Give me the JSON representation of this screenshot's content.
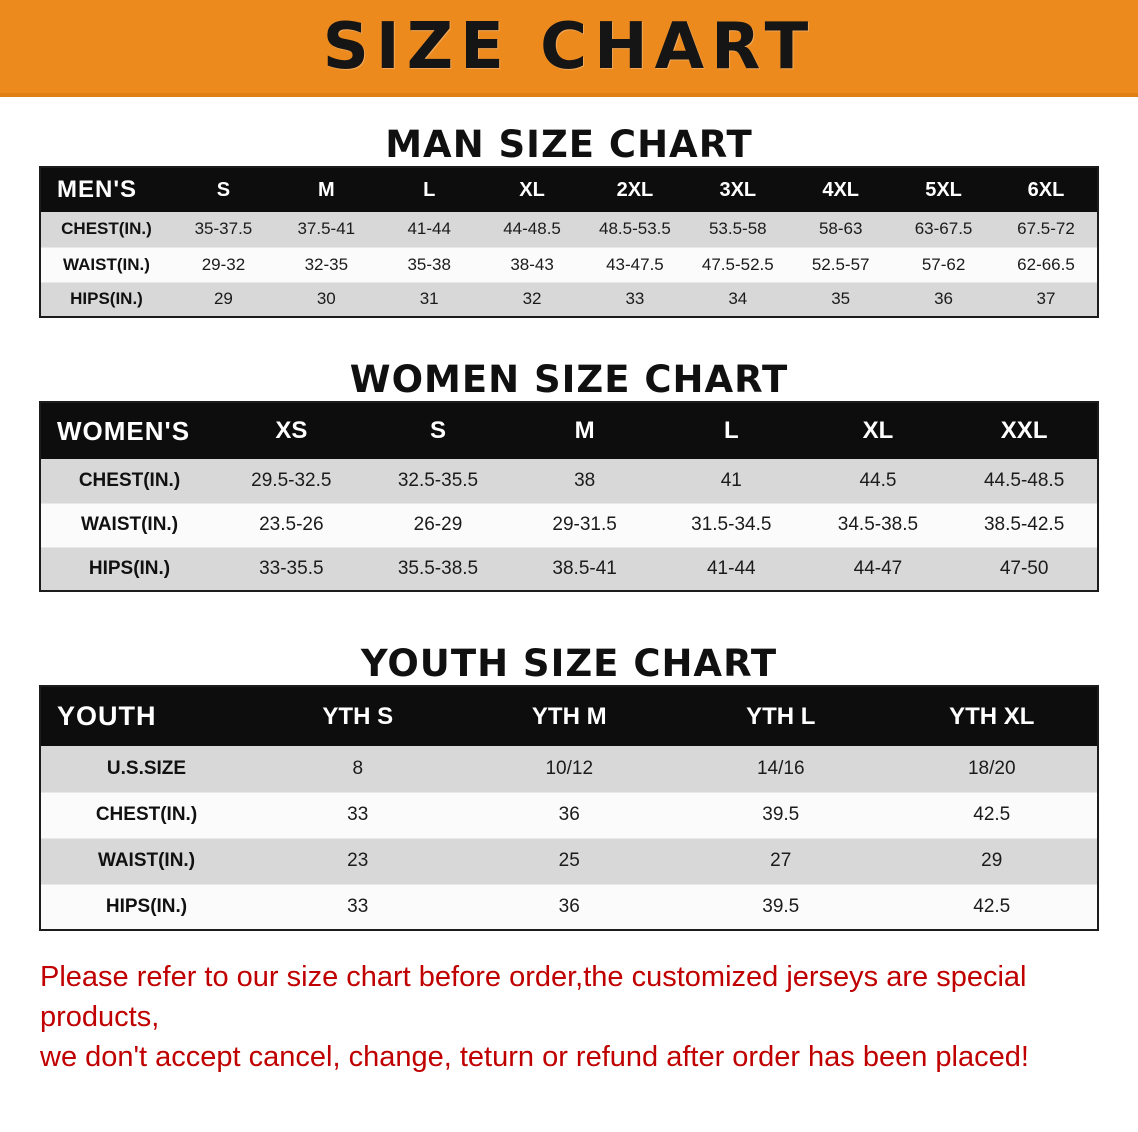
{
  "banner": {
    "title": "SIZE CHART",
    "background_color": "#EC8A1E",
    "text_color": "#151515"
  },
  "sections": [
    {
      "heading": "MAN SIZE CHART",
      "table": {
        "header_label": "MEN'S",
        "columns": [
          "S",
          "M",
          "L",
          "XL",
          "2XL",
          "3XL",
          "4XL",
          "5XL",
          "6XL"
        ],
        "rows": [
          {
            "label": "CHEST(IN.)",
            "values": [
              "35-37.5",
              "37.5-41",
              "41-44",
              "44-48.5",
              "48.5-53.5",
              "53.5-58",
              "58-63",
              "63-67.5",
              "67.5-72"
            ]
          },
          {
            "label": "WAIST(IN.)",
            "values": [
              "29-32",
              "32-35",
              "35-38",
              "38-43",
              "43-47.5",
              "47.5-52.5",
              "52.5-57",
              "57-62",
              "62-66.5"
            ]
          },
          {
            "label": "HIPS(IN.)",
            "values": [
              "29",
              "30",
              "31",
              "32",
              "33",
              "34",
              "35",
              "36",
              "37"
            ]
          }
        ]
      }
    },
    {
      "heading": "WOMEN SIZE CHART",
      "table": {
        "header_label": "WOMEN'S",
        "columns": [
          "XS",
          "S",
          "M",
          "L",
          "XL",
          "XXL"
        ],
        "rows": [
          {
            "label": "CHEST(IN.)",
            "values": [
              "29.5-32.5",
              "32.5-35.5",
              "38",
              "41",
              "44.5",
              "44.5-48.5"
            ]
          },
          {
            "label": "WAIST(IN.)",
            "values": [
              "23.5-26",
              "26-29",
              "29-31.5",
              "31.5-34.5",
              "34.5-38.5",
              "38.5-42.5"
            ]
          },
          {
            "label": "HIPS(IN.)",
            "values": [
              "33-35.5",
              "35.5-38.5",
              "38.5-41",
              "41-44",
              "44-47",
              "47-50"
            ]
          }
        ]
      }
    },
    {
      "heading": "YOUTH SIZE CHART",
      "table": {
        "header_label": "YOUTH",
        "columns": [
          "YTH S",
          "YTH M",
          "YTH L",
          "YTH XL"
        ],
        "rows": [
          {
            "label": "U.S.SIZE",
            "values": [
              "8",
              "10/12",
              "14/16",
              "18/20"
            ]
          },
          {
            "label": "CHEST(IN.)",
            "values": [
              "33",
              "36",
              "39.5",
              "42.5"
            ]
          },
          {
            "label": "WAIST(IN.)",
            "values": [
              "23",
              "25",
              "27",
              "29"
            ]
          },
          {
            "label": "HIPS(IN.)",
            "values": [
              "33",
              "36",
              "39.5",
              "42.5"
            ]
          }
        ]
      }
    }
  ],
  "footer": {
    "line1": "Please refer to our size chart before order,the customized jerseys are special products,",
    "line2": "we don't accept cancel, change, teturn or refund after order has been placed!",
    "text_color": "#C00000"
  }
}
